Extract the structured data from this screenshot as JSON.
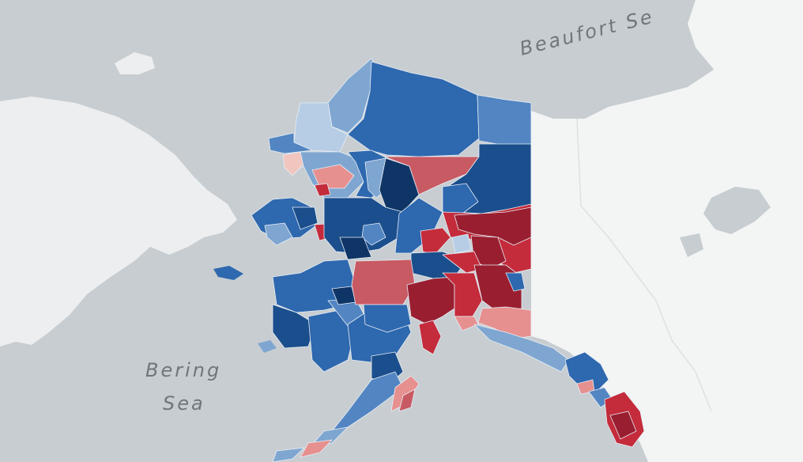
{
  "map": {
    "labels": {
      "beaufort": "Beaufort Se",
      "bering_line1": "Bering",
      "bering_line2": "Sea"
    },
    "colors": {
      "water": "#c7cdd1",
      "land_other": "#eceeef",
      "canada": "#f3f4f4",
      "dark_red": "#991f30",
      "red": "#c42b3b",
      "mid_red": "#c85a63",
      "light_red": "#e6908f",
      "pale_red": "#f0c6bf",
      "pale_blue": "#b6cde5",
      "light_blue": "#7ea6d1",
      "mid_blue": "#5285c2",
      "blue": "#2e68ae",
      "dark_blue": "#1b4e8c",
      "darkest_blue": "#0f3566"
    }
  }
}
